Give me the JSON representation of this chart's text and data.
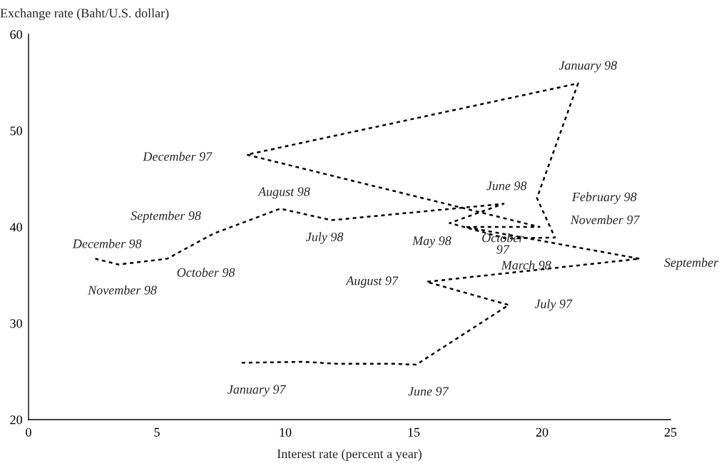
{
  "chart_data": {
    "type": "line",
    "xlabel": "Interest rate (percent a year)",
    "ylabel": "Exchange rate (Baht/U.S. dollar)",
    "xlim": [
      0,
      25
    ],
    "xticks": [
      0,
      5,
      10,
      15,
      20,
      25
    ],
    "ylim": [
      20,
      60
    ],
    "yticks": [
      20,
      30,
      40,
      50,
      60
    ],
    "grid": false,
    "legend": false,
    "marker": "none",
    "line_style": "dotted",
    "series": [
      {
        "color": "#000000",
        "x": [
          8.3,
          10.7,
          12.0,
          13.3,
          14.2,
          15.1,
          18.7,
          15.5,
          23.8,
          17.0,
          19.9,
          8.5,
          21.4,
          19.8,
          20.5,
          18.6,
          16.4,
          18.5,
          11.8,
          9.8,
          7.2,
          5.4,
          3.5,
          2.6
        ],
        "values": [
          25.9,
          26.0,
          25.8,
          25.8,
          25.8,
          25.7,
          31.9,
          34.3,
          36.7,
          40.0,
          40.0,
          47.5,
          54.9,
          43.0,
          38.9,
          38.8,
          40.4,
          42.4,
          40.7,
          41.9,
          39.3,
          36.7,
          36.1,
          36.7
        ]
      }
    ],
    "annotations": [
      {
        "text": "January 97",
        "x": 8.3,
        "y": 25.9
      },
      {
        "text": "June 97",
        "x": 15.1,
        "y": 25.7
      },
      {
        "text": "July 97",
        "x": 18.7,
        "y": 31.9
      },
      {
        "text": "August 97",
        "x": 15.5,
        "y": 34.3
      },
      {
        "text": "September",
        "x": 23.8,
        "y": 36.7
      },
      {
        "text": "October\n97",
        "x": 17.0,
        "y": 40.0
      },
      {
        "text": "November 97",
        "x": 19.9,
        "y": 40.0
      },
      {
        "text": "December 97",
        "x": 8.5,
        "y": 47.5
      },
      {
        "text": "January 98",
        "x": 21.4,
        "y": 54.9
      },
      {
        "text": "February 98",
        "x": 19.8,
        "y": 43.0
      },
      {
        "text": "March 98",
        "x": 20.5,
        "y": 38.9
      },
      {
        "text": "May 98",
        "x": 16.4,
        "y": 40.4
      },
      {
        "text": "June 98",
        "x": 18.5,
        "y": 42.4
      },
      {
        "text": "July 98",
        "x": 11.8,
        "y": 40.7
      },
      {
        "text": "August 98",
        "x": 9.8,
        "y": 41.9
      },
      {
        "text": "September 98",
        "x": 7.2,
        "y": 39.3
      },
      {
        "text": "October 98",
        "x": 5.4,
        "y": 36.7
      },
      {
        "text": "November 98",
        "x": 3.5,
        "y": 36.1
      },
      {
        "text": "December 98",
        "x": 2.6,
        "y": 36.7
      }
    ]
  }
}
